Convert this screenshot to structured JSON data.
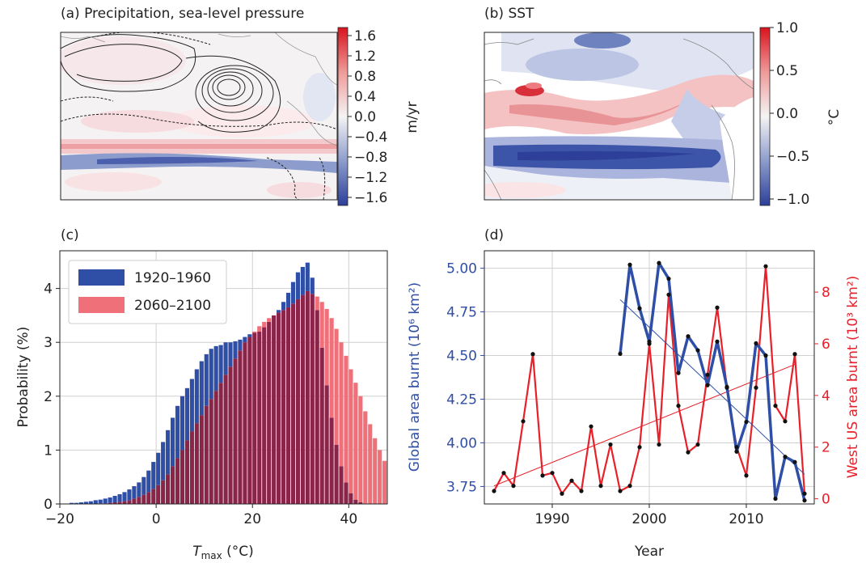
{
  "colors": {
    "blue": "#2f4ea6",
    "red": "#e8202a",
    "hist_blue": "#2f4ea6",
    "hist_red": "#f0707a",
    "overlap": "#8a2448",
    "ocean_neg": "#3d55a8",
    "ocean_pos": "#e8443f"
  },
  "chart_data": [
    {
      "type": "heatmap",
      "panel_label": "(a) Precipitation, sea-level pressure",
      "colorbar": {
        "label": "m/yr",
        "ticks": [
          "1.6",
          "1.2",
          "0.8",
          "0.4",
          "0.0",
          "−0.4",
          "−0.8",
          "−1.2",
          "−1.6"
        ],
        "range": [
          -1.6,
          1.6
        ],
        "colormap": "blue-white-red"
      }
    },
    {
      "type": "heatmap",
      "panel_label": "(b) SST",
      "colorbar": {
        "label": "°C",
        "ticks": [
          "1.0",
          "0.5",
          "0.0",
          "−0.5",
          "−1.0"
        ],
        "range": [
          -1.0,
          1.0
        ],
        "colormap": "blue-white-red"
      }
    },
    {
      "type": "bar",
      "panel_label": "(c)",
      "xlabel": "T",
      "xlabel_sub": "max",
      "xlabel_unit": " (°C)",
      "ylabel": "Probability (%)",
      "xlim": [
        -20,
        48
      ],
      "ylim": [
        0,
        4.7
      ],
      "xticks": [
        "−20",
        "0",
        "20",
        "40"
      ],
      "yticks": [
        "0",
        "1",
        "2",
        "3",
        "4"
      ],
      "xtick_values": [
        -20,
        0,
        20,
        40
      ],
      "ytick_values": [
        0,
        1,
        2,
        3,
        4
      ],
      "grid": true,
      "legend_position": "top-left",
      "bin_width": 1,
      "bin_start": -18,
      "series": [
        {
          "name": "1920–1960",
          "values": [
            0.02,
            0.02,
            0.03,
            0.04,
            0.05,
            0.07,
            0.08,
            0.1,
            0.12,
            0.15,
            0.18,
            0.22,
            0.27,
            0.33,
            0.4,
            0.5,
            0.62,
            0.78,
            0.95,
            1.15,
            1.37,
            1.6,
            1.82,
            2.0,
            2.15,
            2.32,
            2.5,
            2.65,
            2.78,
            2.88,
            2.93,
            2.95,
            3.0,
            3.0,
            3.02,
            3.05,
            3.1,
            3.15,
            3.18,
            3.2,
            3.28,
            3.38,
            3.5,
            3.6,
            3.75,
            3.92,
            4.12,
            4.3,
            4.4,
            4.48,
            4.2,
            3.6,
            2.9,
            2.2,
            1.6,
            1.1,
            0.7,
            0.4,
            0.2,
            0.08,
            0.03,
            0.01,
            0,
            0,
            0,
            0
          ]
        },
        {
          "name": "2060–2100",
          "values": [
            0,
            0,
            0,
            0,
            0,
            0,
            0.01,
            0.01,
            0.02,
            0.03,
            0.04,
            0.05,
            0.07,
            0.1,
            0.13,
            0.17,
            0.22,
            0.28,
            0.35,
            0.44,
            0.55,
            0.7,
            0.85,
            1.0,
            1.18,
            1.35,
            1.5,
            1.65,
            1.82,
            1.95,
            2.1,
            2.25,
            2.4,
            2.55,
            2.7,
            2.85,
            3.0,
            3.1,
            3.2,
            3.3,
            3.38,
            3.45,
            3.5,
            3.55,
            3.6,
            3.65,
            3.72,
            3.8,
            3.88,
            3.95,
            3.9,
            3.85,
            3.75,
            3.62,
            3.45,
            3.25,
            3.0,
            2.75,
            2.5,
            2.25,
            2.0,
            1.72,
            1.48,
            1.22,
            1.0,
            0.8
          ]
        }
      ]
    },
    {
      "type": "line",
      "panel_label": "(d)",
      "xlabel": "Year",
      "ylabel": "Global area burnt (10⁶ km²)",
      "ylabel_right": "West US area burnt (10³ km²)",
      "xlim": [
        1983,
        2017
      ],
      "ylim": [
        3.65,
        5.1
      ],
      "ylim_right": [
        -0.2,
        9.6
      ],
      "xticks": [
        "1990",
        "2000",
        "2010"
      ],
      "xtick_values": [
        1990,
        2000,
        2010
      ],
      "yticks": [
        "3.75",
        "4.00",
        "4.25",
        "4.50",
        "4.75",
        "5.00"
      ],
      "ytick_values": [
        3.75,
        4.0,
        4.25,
        4.5,
        4.75,
        5.0
      ],
      "yticks_right": [
        "0",
        "2",
        "4",
        "6",
        "8"
      ],
      "ytick_values_right": [
        0,
        2,
        4,
        6,
        8
      ],
      "grid": true,
      "series": [
        {
          "name": "Global area burnt",
          "axis": "left",
          "x": [
            1997,
            1998,
            1999,
            2000,
            2001,
            2002,
            2003,
            2004,
            2005,
            2006,
            2007,
            2008,
            2009,
            2010,
            2011,
            2012,
            2013,
            2014,
            2015,
            2016
          ],
          "y": [
            4.51,
            5.02,
            4.77,
            4.58,
            5.03,
            4.94,
            4.4,
            4.61,
            4.53,
            4.33,
            4.58,
            4.32,
            3.95,
            4.12,
            4.57,
            4.5,
            3.68,
            3.92,
            3.89,
            3.67
          ],
          "trend": [
            [
              1997,
              4.82
            ],
            [
              2016,
              3.82
            ]
          ]
        },
        {
          "name": "West US area burnt",
          "axis": "right",
          "x": [
            1984,
            1985,
            1986,
            1987,
            1988,
            1989,
            1990,
            1991,
            1992,
            1993,
            1994,
            1995,
            1996,
            1997,
            1998,
            1999,
            2000,
            2001,
            2002,
            2003,
            2004,
            2005,
            2006,
            2007,
            2008,
            2009,
            2010,
            2011,
            2012,
            2013,
            2014,
            2015,
            2016
          ],
          "y": [
            0.3,
            1.0,
            0.5,
            3.0,
            5.6,
            0.9,
            1.0,
            0.2,
            0.7,
            0.3,
            2.8,
            0.5,
            2.1,
            0.3,
            0.5,
            2.0,
            6.0,
            2.1,
            7.9,
            3.6,
            1.8,
            2.1,
            4.8,
            7.4,
            4.3,
            2.0,
            0.9,
            4.3,
            9.0,
            3.6,
            3.0,
            5.6,
            0.2
          ],
          "trend": [
            [
              1984,
              0.5
            ],
            [
              2015,
              5.2
            ]
          ]
        }
      ]
    }
  ]
}
